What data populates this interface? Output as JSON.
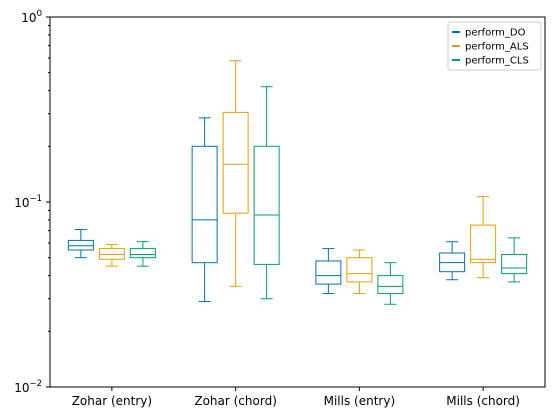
{
  "chart_data": {
    "type": "box",
    "yscale": "log",
    "ylim": [
      0.01,
      1
    ],
    "yticks": [
      {
        "value": 0.01,
        "base": "10",
        "exp": "−2"
      },
      {
        "value": 0.1,
        "base": "10",
        "exp": "−1"
      },
      {
        "value": 1,
        "base": "10",
        "exp": "0"
      }
    ],
    "grid": false,
    "legend_position": "top-right",
    "categories": [
      "Zohar (entry)",
      "Zohar (chord)",
      "Mills (entry)",
      "Mills (chord)"
    ],
    "series": [
      {
        "name": "perform_DO",
        "color": "#0072B2",
        "boxes": [
          {
            "whislo": 0.05,
            "q1": 0.055,
            "med": 0.058,
            "q3": 0.062,
            "whishi": 0.071
          },
          {
            "whislo": 0.029,
            "q1": 0.047,
            "med": 0.08,
            "q3": 0.2,
            "whishi": 0.285
          },
          {
            "whislo": 0.032,
            "q1": 0.036,
            "med": 0.04,
            "q3": 0.048,
            "whishi": 0.056
          },
          {
            "whislo": 0.038,
            "q1": 0.042,
            "med": 0.047,
            "q3": 0.053,
            "whishi": 0.061
          }
        ]
      },
      {
        "name": "perform_ALS",
        "color": "#E69F00",
        "boxes": [
          {
            "whislo": 0.045,
            "q1": 0.049,
            "med": 0.052,
            "q3": 0.056,
            "whishi": 0.059
          },
          {
            "whislo": 0.035,
            "q1": 0.087,
            "med": 0.16,
            "q3": 0.305,
            "whishi": 0.58
          },
          {
            "whislo": 0.032,
            "q1": 0.037,
            "med": 0.041,
            "q3": 0.05,
            "whishi": 0.055
          },
          {
            "whislo": 0.039,
            "q1": 0.047,
            "med": 0.049,
            "q3": 0.075,
            "whishi": 0.107
          }
        ]
      },
      {
        "name": "perform_CLS",
        "color": "#009E73",
        "boxes": [
          {
            "whislo": 0.045,
            "q1": 0.05,
            "med": 0.052,
            "q3": 0.056,
            "whishi": 0.061
          },
          {
            "whislo": 0.03,
            "q1": 0.046,
            "med": 0.085,
            "q3": 0.2,
            "whishi": 0.42
          },
          {
            "whislo": 0.028,
            "q1": 0.032,
            "med": 0.035,
            "q3": 0.04,
            "whishi": 0.047
          },
          {
            "whislo": 0.037,
            "q1": 0.041,
            "med": 0.044,
            "q3": 0.052,
            "whishi": 0.064
          }
        ]
      }
    ]
  }
}
